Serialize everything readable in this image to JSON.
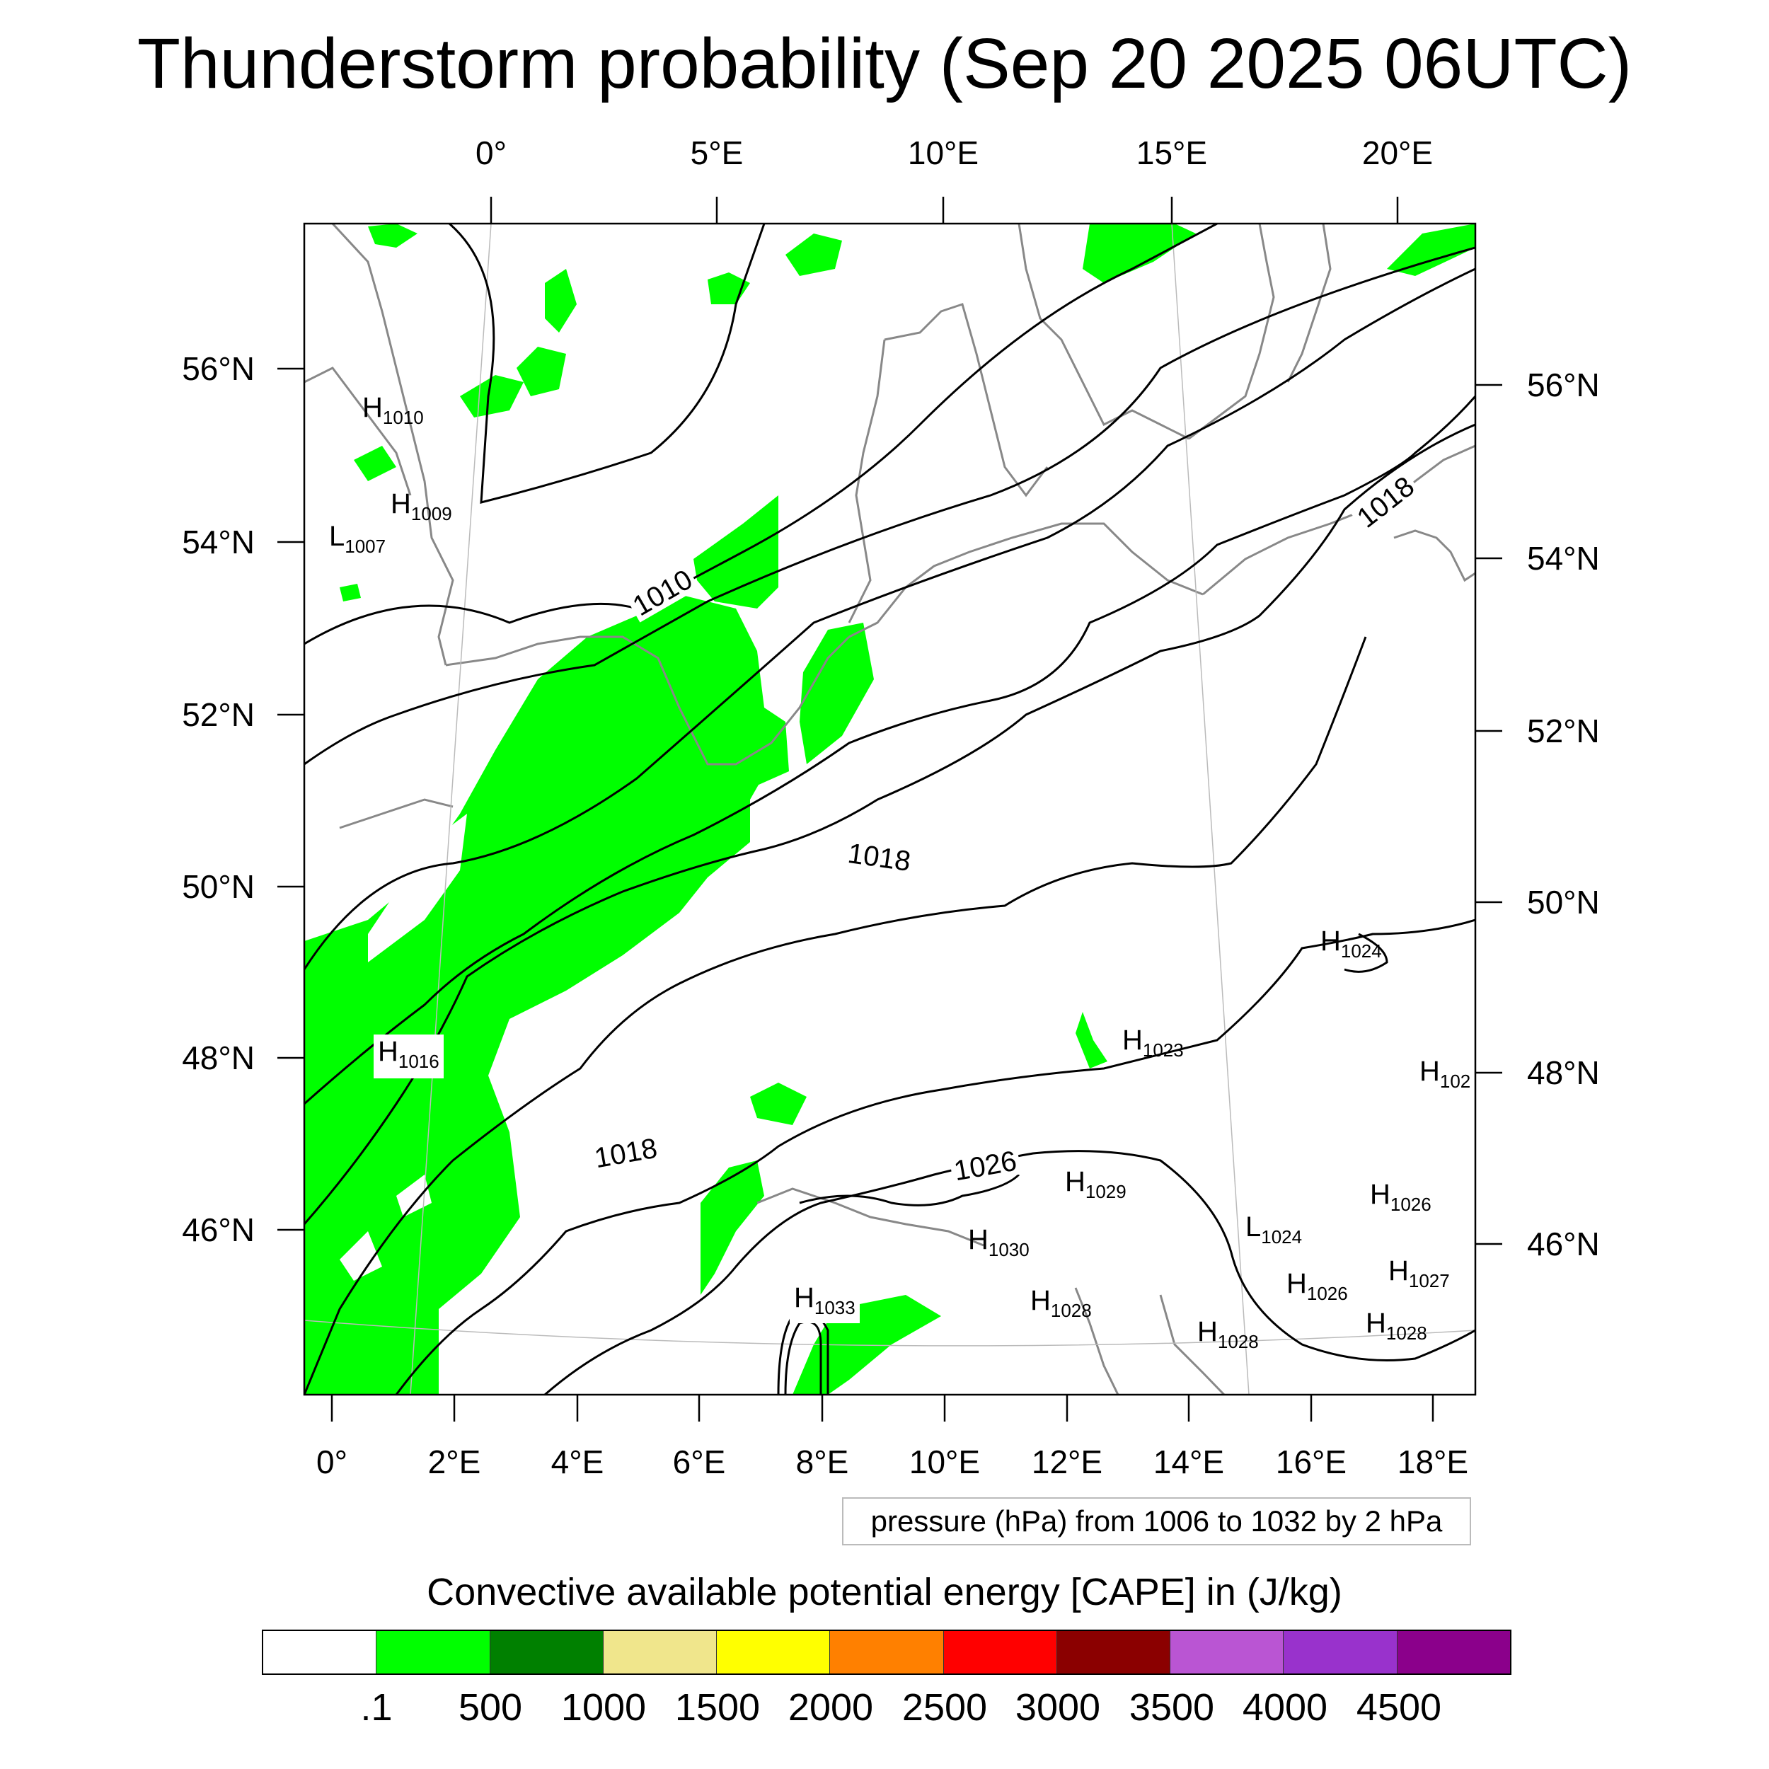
{
  "title": "Thunderstorm probability (Sep 20 2025 06UTC)",
  "axes": {
    "top_lon_labels": [
      "0°",
      "5°E",
      "10°E",
      "15°E",
      "20°E"
    ],
    "bottom_lon_labels": [
      "0°",
      "2°E",
      "4°E",
      "6°E",
      "8°E",
      "10°E",
      "12°E",
      "14°E",
      "16°E",
      "18°E"
    ],
    "left_lat_labels": [
      "56°N",
      "54°N",
      "52°N",
      "50°N",
      "48°N",
      "46°N"
    ],
    "right_lat_labels": [
      "56°N",
      "54°N",
      "52°N",
      "50°N",
      "48°N",
      "46°N"
    ]
  },
  "pressure_centers": [
    {
      "type": "H",
      "value": "1010"
    },
    {
      "type": "H",
      "value": "1009"
    },
    {
      "type": "L",
      "value": "1007"
    },
    {
      "type": "H",
      "value": "1016"
    },
    {
      "type": "H",
      "value": "1024"
    },
    {
      "type": "H",
      "value": "1023"
    },
    {
      "type": "H",
      "value": "102"
    },
    {
      "type": "H",
      "value": "1029"
    },
    {
      "type": "H",
      "value": "1026"
    },
    {
      "type": "L",
      "value": "1024"
    },
    {
      "type": "H",
      "value": "1030"
    },
    {
      "type": "H",
      "value": "1026"
    },
    {
      "type": "H",
      "value": "1027"
    },
    {
      "type": "H",
      "value": "1033"
    },
    {
      "type": "H",
      "value": "1028"
    },
    {
      "type": "H",
      "value": "1028"
    },
    {
      "type": "H",
      "value": "1028"
    }
  ],
  "contour_labels": [
    "1010",
    "1018",
    "1018",
    "1018",
    "1026"
  ],
  "contour_info": "pressure (hPa) from 1006 to 1032 by 2 hPa",
  "colorbar": {
    "title": "Convective available potential energy [CAPE] in (J/kg)",
    "colors": [
      "#ffffff",
      "#00ff00",
      "#008000",
      "#f0e68c",
      "#ffff00",
      "#ff8000",
      "#ff0000",
      "#8b0000",
      "#ba55d3",
      "#9932cc",
      "#8b008b"
    ],
    "labels": [
      ".1",
      "500",
      "1000",
      "1500",
      "2000",
      "2500",
      "3000",
      "3500",
      "4000",
      "4500"
    ]
  },
  "colors": {
    "cape_fill": "#00ff00",
    "coastline": "#888888",
    "isobar": "#000000"
  }
}
